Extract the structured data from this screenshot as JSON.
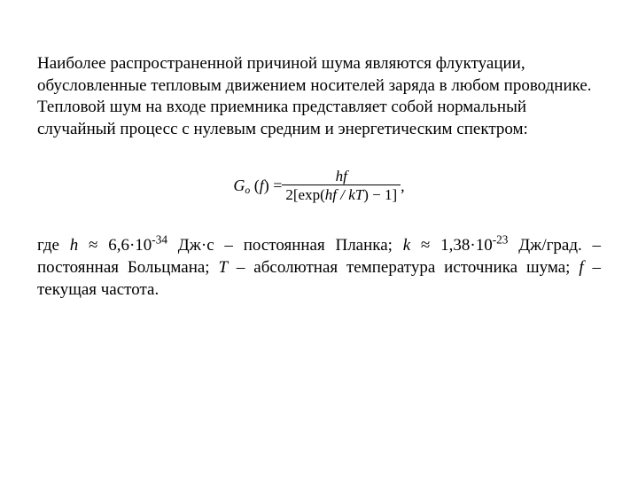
{
  "para1": "Наиболее распространенной причиной шума являются флуктуации, обусловленные тепловым движением носителей заряда в любом проводнике. Тепловой шум на входе приемника представляет собой нормальный случайный процесс с нулевым средним и энергетическим спектром:",
  "formula": {
    "lhs_G": "G",
    "lhs_sub": "o",
    "lhs_arg_open": " (",
    "lhs_arg_var": "f",
    "lhs_arg_close": ") = ",
    "num": "hf",
    "den_lead": "2[exp(",
    "den_inner": "hf / kT",
    "den_tail": ") − 1]",
    "trailing": ","
  },
  "p2_a": "где ",
  "p2_h": "h",
  "p2_b": " ≈ 6,6·10",
  "p2_exp1": "-34",
  "p2_c": " Дж·с – постоянная Планка; ",
  "p2_k": "k",
  "p2_d": " ≈ 1,38·10",
  "p2_exp2": "-23",
  "p2_e": " Дж/град. – постоянная Больцмана; ",
  "p2_T": "T",
  "p2_f": " – абсолютная температура источника шума; ",
  "p2_fvar": "f",
  "p2_g": " – текущая частота."
}
